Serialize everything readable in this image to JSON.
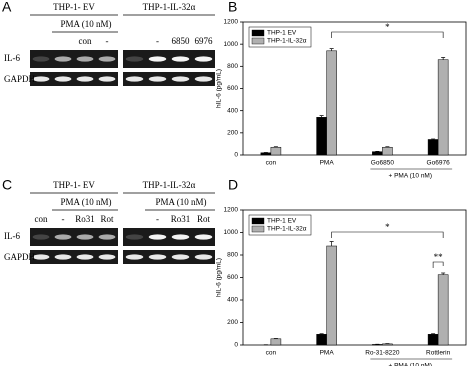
{
  "panels": [
    "A",
    "B",
    "C",
    "D"
  ],
  "gels": [
    {
      "header_left": "THP-1- EV",
      "header_right": "THP-1-IL-32α",
      "treatment_left": "PMA (10 nM)",
      "lanes_left": [
        "con",
        "-"
      ],
      "lanes_right": [
        "-",
        "6850",
        "6976"
      ],
      "rows": [
        "IL-6",
        "GAPDH"
      ]
    },
    {
      "header_left": "THP-1- EV",
      "header_right": "THP-1-IL-32α",
      "treatment_left": "PMA (10 nM)",
      "treatment_right": "PMA (10 nM)",
      "lanes_left": [
        "con",
        "-",
        "Ro31",
        "Rot"
      ],
      "lanes_right": [
        "-",
        "Ro31",
        "Rot"
      ],
      "rows": [
        "IL-6",
        "GAPDH"
      ]
    }
  ],
  "chart_data": [
    {
      "type": "bar",
      "y_label": "hIL-6 (pg/mL)",
      "categories": [
        "con",
        "PMA",
        "Go6850",
        "Go6976"
      ],
      "series": [
        {
          "name": "THP-1 EV",
          "color": "#000000",
          "values": [
            20,
            340,
            30,
            140
          ],
          "errors": [
            3,
            15,
            3,
            5
          ]
        },
        {
          "name": "THP-1-IL-32α",
          "color": "#b0b0b0",
          "values": [
            70,
            940,
            70,
            860
          ],
          "errors": [
            5,
            20,
            5,
            20
          ]
        }
      ],
      "ylim": [
        0,
        1200
      ],
      "yticks": [
        0,
        200,
        400,
        600,
        800,
        1000,
        1200
      ],
      "significance": "*",
      "group_label": "+ PMA (10 nM)",
      "legend": "upper left"
    },
    {
      "type": "bar",
      "y_label": "hIL-6 (pg/mL)",
      "categories": [
        "con",
        "PMA",
        "Ro-31-8220",
        "Rottlerin"
      ],
      "series": [
        {
          "name": "THP-1 EV",
          "color": "#000000",
          "values": [
            0,
            95,
            5,
            95
          ],
          "errors": [
            2,
            5,
            2,
            5
          ]
        },
        {
          "name": "THP-1-IL-32α",
          "color": "#b0b0b0",
          "values": [
            55,
            880,
            10,
            625
          ],
          "errors": [
            3,
            40,
            2,
            15
          ]
        }
      ],
      "ylim": [
        0,
        1200
      ],
      "yticks": [
        0,
        200,
        400,
        600,
        800,
        1000,
        1200
      ],
      "significance": "*",
      "significance_2": "**",
      "group_label": "+ PMA (10 nM)",
      "legend": "upper left"
    }
  ]
}
